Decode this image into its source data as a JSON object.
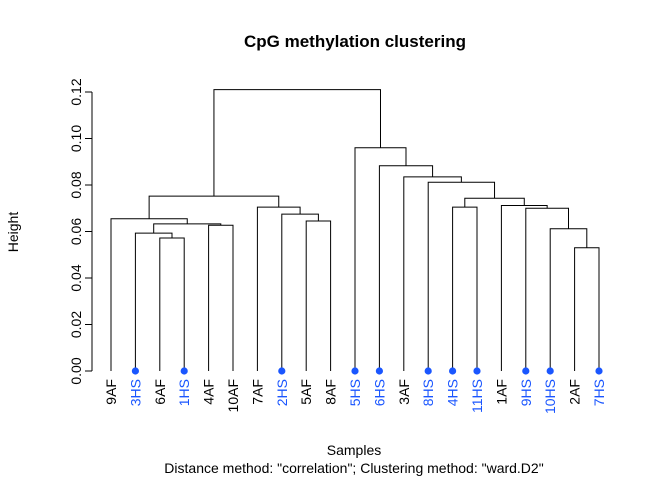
{
  "chart_data": {
    "type": "dendrogram",
    "title": "CpG methylation clustering",
    "xlabel": "Samples",
    "subtitle": "Distance method: \"correlation\"; Clustering method: \"ward.D2\"",
    "ylabel": "Height",
    "ylim": [
      0,
      0.12
    ],
    "yticks": [
      "0.00",
      "0.02",
      "0.04",
      "0.06",
      "0.08",
      "0.10",
      "0.12"
    ],
    "ytick_values": [
      0,
      0.02,
      0.04,
      0.06,
      0.08,
      0.1,
      0.12
    ],
    "leaves": [
      {
        "label": "9AF",
        "group": "AF"
      },
      {
        "label": "3HS",
        "group": "HS"
      },
      {
        "label": "6AF",
        "group": "AF"
      },
      {
        "label": "1HS",
        "group": "HS"
      },
      {
        "label": "4AF",
        "group": "AF"
      },
      {
        "label": "10AF",
        "group": "AF"
      },
      {
        "label": "7AF",
        "group": "AF"
      },
      {
        "label": "2HS",
        "group": "HS"
      },
      {
        "label": "5AF",
        "group": "AF"
      },
      {
        "label": "8AF",
        "group": "AF"
      },
      {
        "label": "5HS",
        "group": "HS"
      },
      {
        "label": "6HS",
        "group": "HS"
      },
      {
        "label": "3AF",
        "group": "AF"
      },
      {
        "label": "8HS",
        "group": "HS"
      },
      {
        "label": "4HS",
        "group": "HS"
      },
      {
        "label": "11HS",
        "group": "HS"
      },
      {
        "label": "1AF",
        "group": "AF"
      },
      {
        "label": "9HS",
        "group": "HS"
      },
      {
        "label": "10HS",
        "group": "HS"
      },
      {
        "label": "2AF",
        "group": "AF"
      },
      {
        "label": "7HS",
        "group": "HS"
      }
    ],
    "merges": [
      [
        2,
        3,
        0.0572
      ],
      [
        1,
        -1,
        0.0593
      ],
      [
        4,
        5,
        0.0627
      ],
      [
        -2,
        -3,
        0.0633
      ],
      [
        0,
        -4,
        0.0655
      ],
      [
        8,
        9,
        0.0645
      ],
      [
        7,
        -6,
        0.0675
      ],
      [
        6,
        -7,
        0.0705
      ],
      [
        -5,
        -8,
        0.0752
      ],
      [
        19,
        20,
        0.053
      ],
      [
        18,
        -10,
        0.0612
      ],
      [
        17,
        -11,
        0.07
      ],
      [
        16,
        -12,
        0.0712
      ],
      [
        14,
        15,
        0.0705
      ],
      [
        -14,
        -13,
        0.0743
      ],
      [
        13,
        -15,
        0.0812
      ],
      [
        12,
        -16,
        0.0835
      ],
      [
        11,
        -17,
        0.0883
      ],
      [
        10,
        -18,
        0.096
      ],
      [
        -9,
        -19,
        0.121
      ]
    ],
    "colors": {
      "AF": "#000000",
      "HS": "#1a56ff",
      "line": "#000000"
    }
  }
}
